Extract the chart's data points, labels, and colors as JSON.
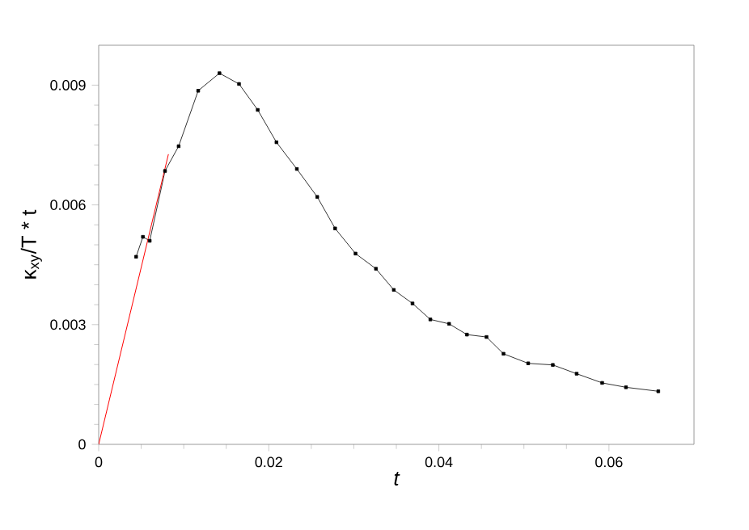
{
  "chart_data": {
    "type": "line",
    "xlabel": "t",
    "ylabel": "κ$_{xy}$/T * t",
    "xlim": [
      0,
      0.07
    ],
    "ylim": [
      0,
      0.01
    ],
    "xticks": [
      0,
      0.02,
      0.04,
      0.06
    ],
    "yticks": [
      0,
      0.003,
      0.006,
      0.009
    ],
    "grid": false,
    "marker": "square",
    "line_style": "solid",
    "series": [
      {
        "color": "#000000",
        "x": [
          0.0044,
          0.0052,
          0.006,
          0.0078,
          0.0094,
          0.0117,
          0.0142,
          0.0165,
          0.0187,
          0.0209,
          0.0233,
          0.0257,
          0.0278,
          0.0302,
          0.0326,
          0.0347,
          0.0369,
          0.039,
          0.0412,
          0.0433,
          0.0456,
          0.0476,
          0.0505,
          0.0534,
          0.0562,
          0.0592,
          0.062,
          0.0658
        ],
        "values": [
          0.0047,
          0.0052,
          0.0051,
          0.00685,
          0.00747,
          0.00886,
          0.0093,
          0.00903,
          0.00838,
          0.00757,
          0.0069,
          0.0062,
          0.00541,
          0.00478,
          0.0044,
          0.00387,
          0.00353,
          0.00313,
          0.00302,
          0.00275,
          0.00269,
          0.00227,
          0.00203,
          0.00199,
          0.00177,
          0.00154,
          0.00143,
          0.00133
        ]
      },
      {
        "color": "#ff0000",
        "marker": "none",
        "x": [
          0,
          0.0082
        ],
        "values": [
          0,
          0.00727
        ]
      }
    ]
  }
}
